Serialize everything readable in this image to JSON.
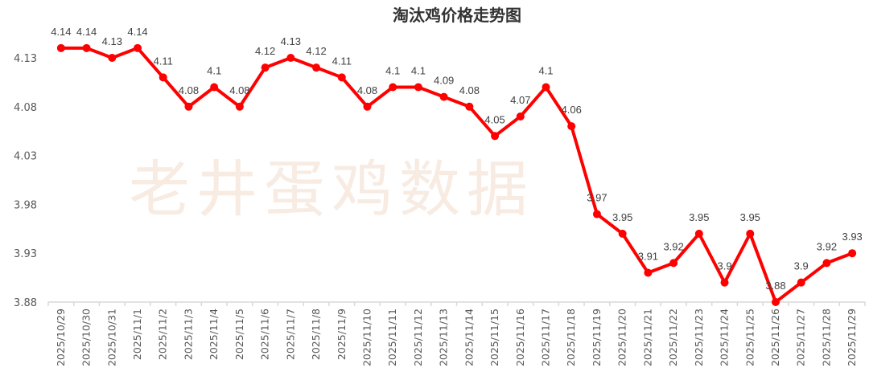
{
  "chart_data": {
    "type": "line",
    "title": "淘汰鸡价格走势图",
    "watermark": "老井蛋鸡数据",
    "xlabel": "",
    "ylabel": "",
    "categories": [
      "2025/10/29",
      "2025/10/30",
      "2025/10/31",
      "2025/11/1",
      "2025/11/2",
      "2025/11/3",
      "2025/11/4",
      "2025/11/5",
      "2025/11/6",
      "2025/11/7",
      "2025/11/8",
      "2025/11/9",
      "2025/11/10",
      "2025/11/11",
      "2025/11/12",
      "2025/11/13",
      "2025/11/14",
      "2025/11/15",
      "2025/11/16",
      "2025/11/17",
      "2025/11/18",
      "2025/11/19",
      "2025/11/20",
      "2025/11/21",
      "2025/11/22",
      "2025/11/23",
      "2025/11/24",
      "2025/11/25",
      "2025/11/26",
      "2025/11/27",
      "2025/11/28",
      "2025/11/29"
    ],
    "values": [
      4.14,
      4.14,
      4.13,
      4.14,
      4.11,
      4.08,
      4.1,
      4.08,
      4.12,
      4.13,
      4.12,
      4.11,
      4.08,
      4.1,
      4.1,
      4.09,
      4.08,
      4.05,
      4.07,
      4.1,
      4.06,
      3.97,
      3.95,
      3.91,
      3.92,
      3.95,
      3.9,
      3.95,
      3.88,
      3.9,
      3.92,
      3.93
    ],
    "data_labels": [
      "4.14",
      "4.14",
      "4.13",
      "4.14",
      "4.11",
      "4.08",
      "4.1",
      "4.08",
      "4.12",
      "4.13",
      "4.12",
      "4.11",
      "4.08",
      "4.1",
      "4.1",
      "4.09",
      "4.08",
      "4.05",
      "4.07",
      "4.1",
      "4.06",
      "3.97",
      "3.95",
      "3.91",
      "3.92",
      "3.95",
      "3.9",
      "3.95",
      "3.88",
      "3.9",
      "3.92",
      "3.93"
    ],
    "yticks": [
      "3.88",
      "3.93",
      "3.98",
      "4.03",
      "4.08",
      "4.13"
    ],
    "ylim": [
      3.88,
      4.13
    ],
    "grid": false,
    "legend": "none",
    "line_color": "#ff0000",
    "watermark_color": "#f7ebe2"
  }
}
